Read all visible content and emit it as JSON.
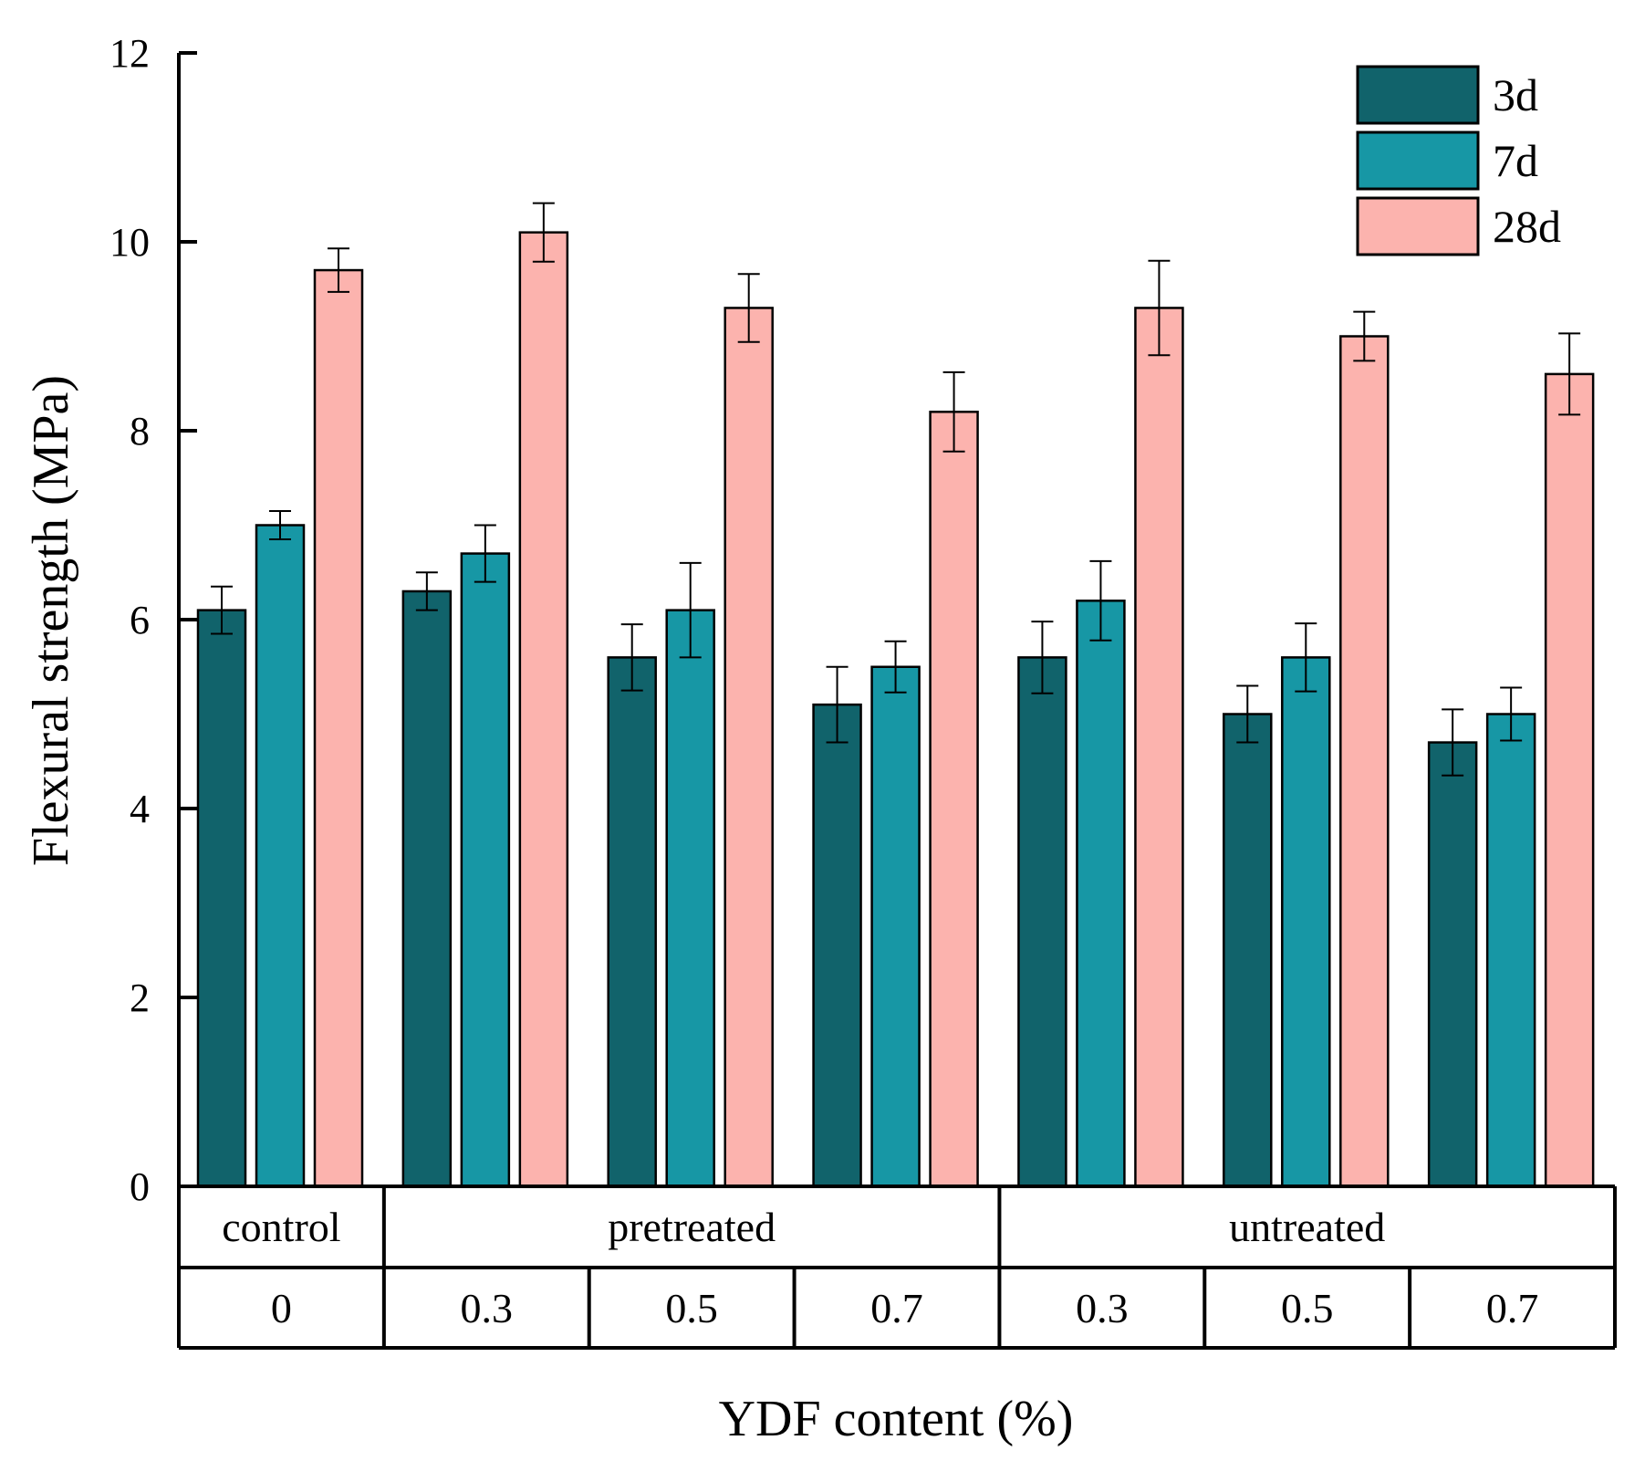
{
  "chart_data": {
    "type": "bar",
    "title": "",
    "xlabel": "YDF content (%)",
    "ylabel": "Flexural strength (MPa)",
    "ylim": [
      0,
      12
    ],
    "yticks": [
      "0",
      "2",
      "4",
      "6",
      "8",
      "10",
      "12"
    ],
    "grid": false,
    "legend_position": "top-right",
    "treatment_groups": [
      {
        "label": "control",
        "span": 1
      },
      {
        "label": "pretreated",
        "span": 3
      },
      {
        "label": "untreated",
        "span": 3
      }
    ],
    "categories": [
      "0",
      "0.3",
      "0.5",
      "0.7",
      "0.3",
      "0.5",
      "0.7"
    ],
    "series": [
      {
        "name": "3d",
        "color": "#11636b",
        "values": [
          6.1,
          6.3,
          5.6,
          5.1,
          5.6,
          5.0,
          4.7
        ],
        "errors": [
          0.25,
          0.2,
          0.35,
          0.4,
          0.38,
          0.3,
          0.35
        ]
      },
      {
        "name": "7d",
        "color": "#1797a5",
        "values": [
          7.0,
          6.7,
          6.1,
          5.5,
          6.2,
          5.6,
          5.0
        ],
        "errors": [
          0.15,
          0.3,
          0.5,
          0.27,
          0.42,
          0.36,
          0.28
        ]
      },
      {
        "name": "28d",
        "color": "#fcb3ae",
        "values": [
          9.7,
          10.1,
          9.3,
          8.2,
          9.3,
          9.0,
          8.6
        ],
        "errors": [
          0.23,
          0.31,
          0.36,
          0.42,
          0.5,
          0.26,
          0.43
        ]
      }
    ]
  }
}
